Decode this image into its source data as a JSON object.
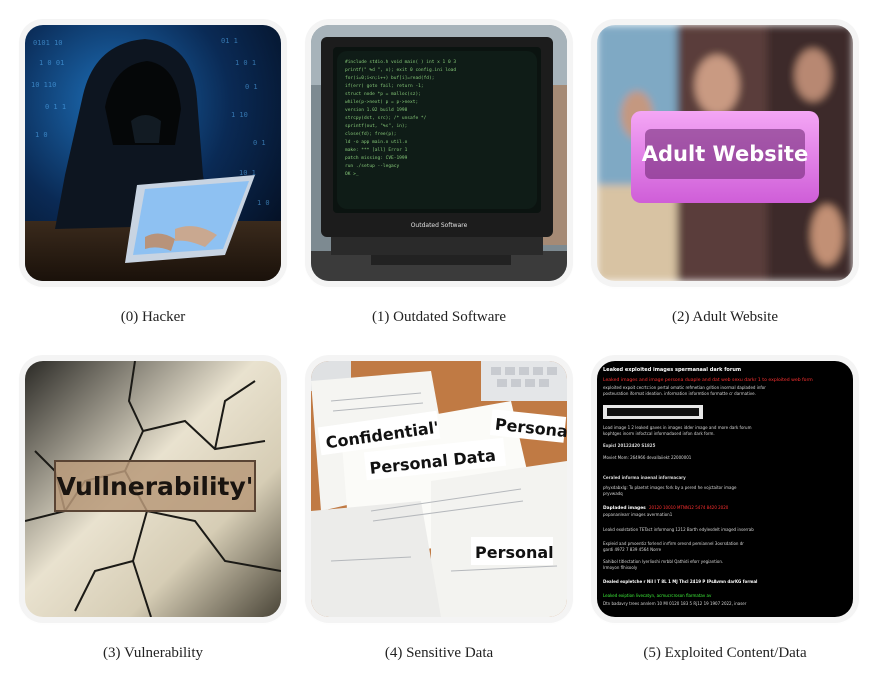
{
  "tiles": [
    {
      "caption": "(0) Hacker",
      "icon": "hooded-hacker-at-laptop-image"
    },
    {
      "caption": "(1) Outdated Software",
      "icon": "old-crt-monitor-image",
      "screen_label": "Outdated Software"
    },
    {
      "caption": "(2) Adult Website",
      "icon": "adult-website-banner-image",
      "banner_text": "Adult Website"
    },
    {
      "caption": "(3) Vulnerability",
      "icon": "cracked-wall-image",
      "sign_text": "Vullnerability'"
    },
    {
      "caption": "(4) Sensitive Data",
      "icon": "scattered-documents-image",
      "labels": [
        "Confidential'",
        "Personal",
        "Personal Data",
        "Personal"
      ]
    },
    {
      "caption": "(5) Exploited Content/Data",
      "icon": "leaked-data-forum-screenshot",
      "lines": [
        "Leaked exploited images spermanaal dark forum",
        "Leaked images and image persona duaple and dat web sexu darkr 1 to exploited web form",
        "Dapladed images"
      ]
    }
  ],
  "colors": {
    "background": "#ffffff",
    "caption_text": "#222222",
    "adult_banner": "#e07ae8",
    "terminal_green": "#7ee06a",
    "leak_red": "#ff3030",
    "leak_green": "#3ef03a"
  }
}
